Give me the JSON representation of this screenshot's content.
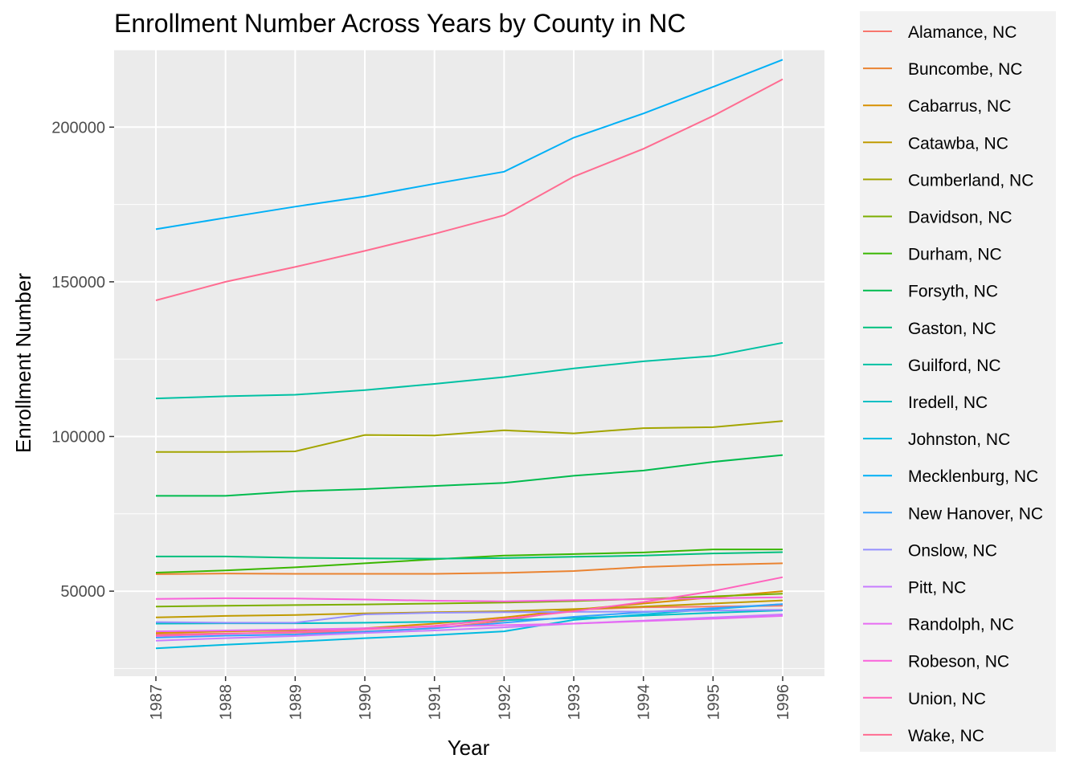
{
  "chart_data": {
    "type": "line",
    "title": "Enrollment Number Across Years by County in NC",
    "xlabel": "Year",
    "ylabel": "Enrollment Number",
    "x": [
      1987,
      1988,
      1989,
      1990,
      1991,
      1992,
      1993,
      1994,
      1995,
      1996
    ],
    "x_tick_labels": [
      "1987",
      "1988",
      "1989",
      "1990",
      "1991",
      "1992",
      "1993",
      "1994",
      "1995",
      "1996"
    ],
    "y_ticks": [
      50000,
      100000,
      150000,
      200000
    ],
    "y_tick_labels": [
      "50000",
      "100000",
      "150000",
      "200000"
    ],
    "xlim": [
      1986.4,
      1996.6
    ],
    "ylim": [
      22500,
      225000
    ],
    "grid": true,
    "legend_position": "right",
    "panel_background": "#ebebeb",
    "series": [
      {
        "name": "Alamance, NC",
        "color": "#F8766D",
        "values": [
          36000,
          36300,
          36600,
          37000,
          38000,
          40500,
          44000,
          44800,
          45000,
          45300
        ]
      },
      {
        "name": "Buncombe, NC",
        "color": "#EA8331",
        "values": [
          55500,
          55700,
          55600,
          55600,
          55600,
          55900,
          56500,
          57800,
          58500,
          59000
        ]
      },
      {
        "name": "Cabarrus, NC",
        "color": "#D89000",
        "values": [
          36500,
          37000,
          37300,
          38000,
          39500,
          41500,
          44000,
          46000,
          48000,
          50000
        ]
      },
      {
        "name": "Catawba, NC",
        "color": "#C09B00",
        "values": [
          41500,
          42000,
          42300,
          42800,
          43200,
          43500,
          44200,
          45000,
          46000,
          47000
        ]
      },
      {
        "name": "Cumberland, NC",
        "color": "#A3A500",
        "values": [
          95000,
          95000,
          95200,
          100500,
          100300,
          102000,
          101000,
          102700,
          103000,
          105000
        ]
      },
      {
        "name": "Davidson, NC",
        "color": "#7CAE00",
        "values": [
          45000,
          45300,
          45500,
          45700,
          46000,
          46300,
          46800,
          47500,
          48300,
          49200
        ]
      },
      {
        "name": "Durham, NC",
        "color": "#39B600",
        "values": [
          56000,
          56700,
          57700,
          59000,
          60300,
          61500,
          62000,
          62500,
          63500,
          63500
        ]
      },
      {
        "name": "Forsyth, NC",
        "color": "#00BB4E",
        "values": [
          80800,
          80800,
          82300,
          83000,
          84000,
          85000,
          87300,
          89000,
          91800,
          94000
        ]
      },
      {
        "name": "Gaston, NC",
        "color": "#00BF7D",
        "values": [
          61200,
          61200,
          60800,
          60600,
          60500,
          60700,
          61100,
          61500,
          62200,
          62600
        ]
      },
      {
        "name": "Guilford, NC",
        "color": "#00C1A3",
        "values": [
          112300,
          113000,
          113500,
          115000,
          117000,
          119200,
          122000,
          124300,
          126000,
          130300
        ]
      },
      {
        "name": "Iredell, NC",
        "color": "#00BFC4",
        "values": [
          39500,
          39600,
          39600,
          39800,
          40100,
          40600,
          41300,
          42100,
          43000,
          43800
        ]
      },
      {
        "name": "Johnston, NC",
        "color": "#00BAE0",
        "values": [
          31500,
          32700,
          33700,
          34800,
          35800,
          37000,
          40700,
          42500,
          44200,
          45800
        ]
      },
      {
        "name": "Mecklenburg, NC",
        "color": "#00B0F6",
        "values": [
          167000,
          170700,
          174300,
          177600,
          181700,
          185600,
          196600,
          204400,
          213000,
          221800
        ]
      },
      {
        "name": "New Hanover, NC",
        "color": "#35A2FF",
        "values": [
          35000,
          35600,
          36000,
          36900,
          38000,
          39800,
          41700,
          43200,
          44500,
          45800
        ]
      },
      {
        "name": "Onslow, NC",
        "color": "#9590FF",
        "values": [
          40000,
          39800,
          39800,
          42500,
          43000,
          43200,
          43300,
          43400,
          43700,
          44000
        ]
      },
      {
        "name": "Pitt, NC",
        "color": "#C77CFF",
        "values": [
          34000,
          34800,
          35500,
          36500,
          37300,
          38300,
          39500,
          40500,
          41500,
          42500
        ]
      },
      {
        "name": "Randolph, NC",
        "color": "#E76BF3",
        "values": [
          37000,
          37300,
          37600,
          38000,
          38500,
          39000,
          39500,
          40300,
          41100,
          42000
        ]
      },
      {
        "name": "Robeson, NC",
        "color": "#FA62DB",
        "values": [
          47500,
          47700,
          47600,
          47300,
          46900,
          46700,
          47100,
          47400,
          47700,
          48000
        ]
      },
      {
        "name": "Union, NC",
        "color": "#FF62BC",
        "values": [
          35500,
          36200,
          36800,
          37700,
          38800,
          41000,
          43500,
          46500,
          50000,
          54500
        ]
      },
      {
        "name": "Wake, NC",
        "color": "#FF6C91",
        "values": [
          144000,
          150000,
          154800,
          160000,
          165500,
          171500,
          184000,
          193000,
          203600,
          215500
        ]
      }
    ]
  }
}
